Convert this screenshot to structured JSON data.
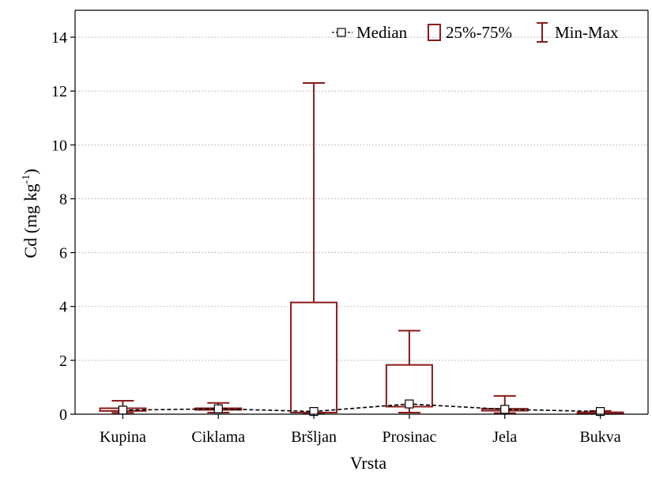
{
  "chart_data": {
    "type": "box",
    "categories": [
      "Kupina",
      "Ciklama",
      "Bršljan",
      "Prosinac",
      "Jela",
      "Bukva"
    ],
    "median": [
      0.15,
      0.2,
      0.1,
      0.38,
      0.18,
      0.1
    ],
    "q1": [
      0.12,
      0.17,
      0.06,
      0.28,
      0.13,
      0.05
    ],
    "q3": [
      0.22,
      0.22,
      4.15,
      1.83,
      0.2,
      0.07
    ],
    "min": [
      0.05,
      0.06,
      0.03,
      0.06,
      0.04,
      0.03
    ],
    "max": [
      0.5,
      0.42,
      12.3,
      3.1,
      0.68,
      0.12
    ],
    "xlabel": "Vrsta",
    "ylabel_main": "Cd (mg kg",
    "ylabel_sup": "-1",
    "ylabel_end": ")",
    "ylim": [
      0,
      15
    ],
    "yticks": [
      0,
      2,
      4,
      6,
      8,
      10,
      12,
      14
    ],
    "grid": true,
    "legend_position": "top-right",
    "legend": {
      "median": "Median",
      "box": "25%-75%",
      "whisker": "Min-Max"
    },
    "colors": {
      "box": "#8b1a1a",
      "median_line": "#000000",
      "grid": "#bfbfbf"
    }
  }
}
